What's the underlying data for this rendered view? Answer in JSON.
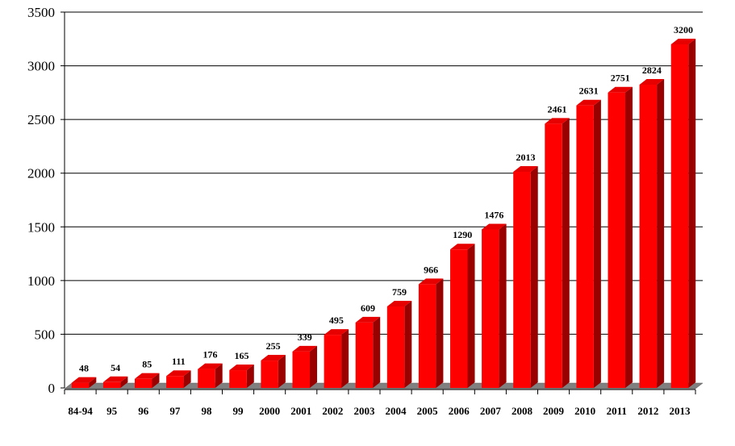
{
  "chart_data": {
    "type": "bar",
    "categories": [
      "84-94",
      "95",
      "96",
      "97",
      "98",
      "99",
      "2000",
      "2001",
      "2002",
      "2003",
      "2004",
      "2005",
      "2006",
      "2007",
      "2008",
      "2009",
      "2010",
      "2011",
      "2012",
      "2013"
    ],
    "values": [
      48,
      54,
      85,
      111,
      176,
      165,
      255,
      339,
      495,
      609,
      759,
      966,
      1290,
      1476,
      2013,
      2461,
      2631,
      2751,
      2824,
      3200
    ],
    "data_labels": [
      "48",
      "54",
      "85",
      "111",
      "176",
      "165",
      "255",
      "339",
      "495",
      "609",
      "759",
      "966",
      "1290",
      "1476",
      "2013",
      "2461",
      "2631",
      "2751",
      "2824",
      "3200"
    ],
    "y_ticks": [
      "0",
      "500",
      "1000",
      "1500",
      "2000",
      "2500",
      "3000",
      "3500"
    ],
    "title": "",
    "xlabel": "",
    "ylabel": "",
    "ylim": [
      0,
      3500
    ],
    "grid": "horizontal",
    "legend": "none",
    "style": "3d-bar"
  },
  "colors": {
    "bar_front": "#ff0000",
    "bar_top": "#e60000",
    "bar_side": "#990000",
    "floor": "#808080",
    "grid": "#000000",
    "text": "#000000"
  }
}
